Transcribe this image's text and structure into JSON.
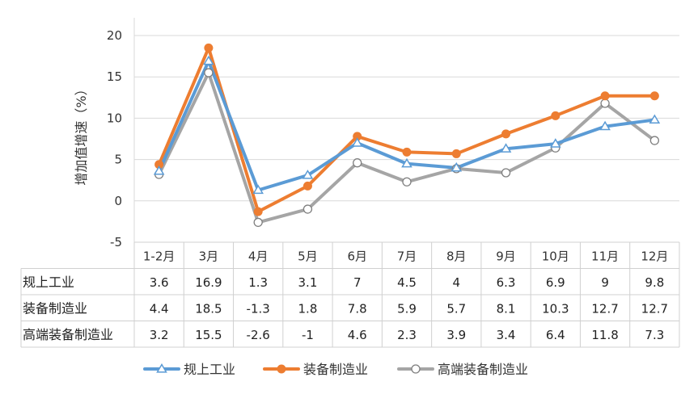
{
  "chart_data": {
    "type": "line",
    "ylabel": "增加值增速（%）",
    "ylim": [
      -5,
      20
    ],
    "yticks": [
      -5,
      0,
      5,
      10,
      15,
      20
    ],
    "grid": "horizontal",
    "legend_position": "bottom",
    "categories": [
      "1-2月",
      "3月",
      "4月",
      "5月",
      "6月",
      "7月",
      "8月",
      "9月",
      "10月",
      "11月",
      "12月"
    ],
    "series": [
      {
        "name": "规上工业",
        "color": "#5b9bd5",
        "marker": "triangle",
        "values": [
          "3.6",
          "16.9",
          "1.3",
          "3.1",
          "7",
          "4.5",
          "4",
          "6.3",
          "6.9",
          "9",
          "9.8"
        ]
      },
      {
        "name": "装备制造业",
        "color": "#ed7d31",
        "marker": "filled-circle",
        "values": [
          "4.4",
          "18.5",
          "-1.3",
          "1.8",
          "7.8",
          "5.9",
          "5.7",
          "8.1",
          "10.3",
          "12.7",
          "12.7"
        ]
      },
      {
        "name": "高端装备制造业",
        "color": "#a5a5a5",
        "marker": "hollow-circle",
        "values": [
          "3.2",
          "15.5",
          "-2.6",
          "-1",
          "4.6",
          "2.3",
          "3.9",
          "3.4",
          "6.4",
          "11.8",
          "7.3"
        ]
      }
    ]
  }
}
